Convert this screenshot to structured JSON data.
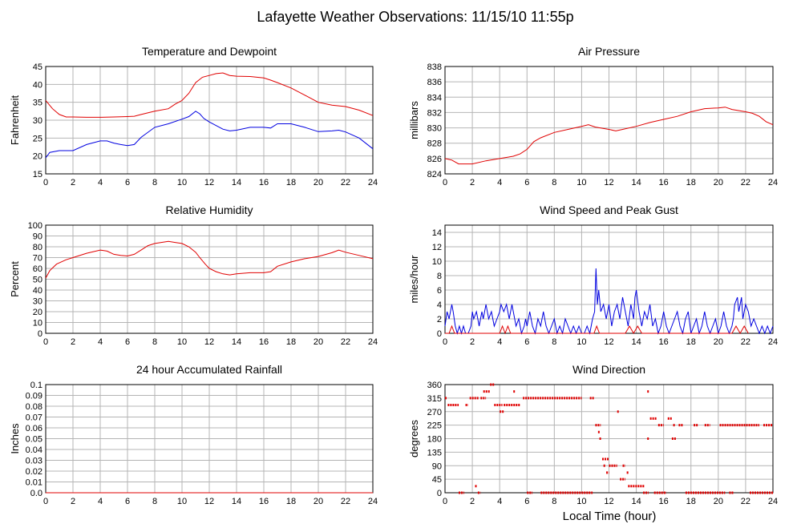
{
  "page": {
    "title": "Lafayette Weather Observations: 11/15/10 11:55p",
    "xlabel_global": "Local Time (hour)"
  },
  "colors": {
    "red": "#e00000",
    "blue": "#0000e0",
    "grid": "#b4b4b4",
    "frame": "#000000"
  },
  "chart_data": [
    {
      "id": "temp",
      "type": "line",
      "title": "Temperature and Dewpoint",
      "ylabel": "Fahrenheit",
      "xlim": [
        0,
        24
      ],
      "ylim": [
        15,
        45
      ],
      "xticks": [
        0,
        2,
        4,
        6,
        8,
        10,
        12,
        14,
        16,
        18,
        20,
        22,
        24
      ],
      "yticks": [
        15,
        20,
        25,
        30,
        35,
        40,
        45
      ],
      "ytick_labels": [
        "15",
        "20",
        "25",
        "30",
        "35",
        "40",
        "45"
      ],
      "grid": true,
      "series": [
        {
          "color": "red",
          "x": [
            0,
            0.5,
            1,
            1.5,
            2,
            3,
            4,
            5,
            6,
            6.5,
            7,
            8,
            9,
            9.5,
            10,
            10.5,
            11,
            11.5,
            12,
            12.5,
            13,
            13.5,
            14,
            15,
            16,
            16.5,
            17,
            18,
            19,
            20,
            21,
            22,
            23,
            24
          ],
          "y": [
            35.5,
            33.2,
            31.6,
            30.9,
            30.9,
            30.8,
            30.8,
            30.9,
            31,
            31.1,
            31.6,
            32.5,
            33.2,
            34.5,
            35.5,
            37.5,
            40.5,
            42,
            42.5,
            43,
            43.2,
            42.5,
            42.3,
            42.2,
            41.8,
            41.2,
            40.5,
            39,
            37,
            35,
            34.2,
            33.8,
            32.8,
            31.3
          ]
        },
        {
          "color": "blue",
          "x": [
            0,
            0.3,
            1,
            2,
            3,
            4,
            4.5,
            5,
            5.5,
            6,
            6.5,
            7,
            8,
            9,
            10,
            10.5,
            11,
            11.3,
            11.6,
            12,
            12.5,
            13,
            13.5,
            14,
            15,
            16,
            16.5,
            17,
            18,
            19,
            20,
            21,
            21.5,
            22,
            23,
            24
          ],
          "y": [
            19.5,
            21,
            21.5,
            21.5,
            23.2,
            24.2,
            24.2,
            23.6,
            23.2,
            22.9,
            23.2,
            25.2,
            28,
            29,
            30.3,
            31,
            32.5,
            31.8,
            30.5,
            29.5,
            28.5,
            27.5,
            27,
            27.2,
            28,
            28,
            27.8,
            29,
            29,
            28,
            26.8,
            27,
            27.2,
            26.7,
            25,
            22
          ]
        }
      ]
    },
    {
      "id": "pressure",
      "type": "line",
      "title": "Air Pressure",
      "ylabel": "millibars",
      "xlim": [
        0,
        24
      ],
      "ylim": [
        824,
        838
      ],
      "xticks": [
        0,
        2,
        4,
        6,
        8,
        10,
        12,
        14,
        16,
        18,
        20,
        22,
        24
      ],
      "yticks": [
        824,
        826,
        828,
        830,
        832,
        834,
        836,
        838
      ],
      "ytick_labels": [
        "824",
        "826",
        "828",
        "830",
        "832",
        "834",
        "836",
        "838"
      ],
      "grid": true,
      "series": [
        {
          "color": "red",
          "x": [
            0,
            0.5,
            1,
            2,
            3,
            4,
            5,
            5.5,
            6,
            6.5,
            7,
            8,
            9,
            10,
            10.5,
            11,
            12,
            12.5,
            13,
            14,
            15,
            16,
            17,
            18,
            19,
            20,
            20.5,
            21,
            22,
            22.5,
            23,
            23.5,
            24
          ],
          "y": [
            826,
            825.8,
            825.3,
            825.3,
            825.7,
            826,
            826.3,
            826.6,
            827.2,
            828.2,
            828.7,
            829.4,
            829.8,
            830.2,
            830.4,
            830.1,
            829.8,
            829.6,
            829.8,
            830.2,
            830.7,
            831.1,
            831.5,
            832.1,
            832.5,
            832.6,
            832.7,
            832.4,
            832.1,
            831.9,
            831.5,
            830.8,
            830.4
          ]
        }
      ]
    },
    {
      "id": "humidity",
      "type": "line",
      "title": "Relative Humidity",
      "ylabel": "Percent",
      "xlim": [
        0,
        24
      ],
      "ylim": [
        0,
        100
      ],
      "xticks": [
        0,
        2,
        4,
        6,
        8,
        10,
        12,
        14,
        16,
        18,
        20,
        22,
        24
      ],
      "yticks": [
        0,
        10,
        20,
        30,
        40,
        50,
        60,
        70,
        80,
        90,
        100
      ],
      "ytick_labels": [
        "0",
        "10",
        "20",
        "30",
        "40",
        "50",
        "60",
        "70",
        "80",
        "90",
        "100"
      ],
      "grid": true,
      "series": [
        {
          "color": "red",
          "x": [
            0,
            0.3,
            0.8,
            1.5,
            2,
            3,
            4,
            4.5,
            5,
            5.5,
            6,
            6.5,
            7,
            7.5,
            8,
            9,
            9.5,
            10,
            10.5,
            11,
            11.3,
            11.7,
            12,
            12.5,
            13,
            13.5,
            14,
            15,
            16,
            16.5,
            17,
            18,
            19,
            20,
            21,
            21.5,
            22,
            23,
            24
          ],
          "y": [
            51,
            58,
            64,
            68,
            70,
            74,
            77,
            76,
            73,
            72,
            71.5,
            73,
            77,
            81,
            83,
            85,
            84,
            83,
            80,
            75,
            70,
            64,
            60,
            57,
            55,
            54,
            55,
            56,
            56,
            57,
            62,
            66,
            69,
            71,
            74.5,
            77,
            75,
            72,
            69
          ]
        }
      ]
    },
    {
      "id": "wind",
      "type": "line",
      "title": "Wind Speed and Peak Gust",
      "ylabel": "miles/hour",
      "xlim": [
        0,
        24
      ],
      "ylim": [
        0,
        15
      ],
      "xticks": [
        0,
        2,
        4,
        6,
        8,
        10,
        12,
        14,
        16,
        18,
        20,
        22,
        24
      ],
      "yticks": [
        0,
        2,
        4,
        6,
        8,
        10,
        12,
        14
      ],
      "ytick_labels": [
        "0",
        "2",
        "4",
        "6",
        "8",
        "10",
        "12",
        "14"
      ],
      "grid": true,
      "series": [
        {
          "color": "blue",
          "x": [
            0,
            0.15,
            0.3,
            0.5,
            0.6,
            0.75,
            0.9,
            1.05,
            1.2,
            1.35,
            1.5,
            1.7,
            1.9,
            2.0,
            2.1,
            2.3,
            2.5,
            2.7,
            2.8,
            3.0,
            3.2,
            3.4,
            3.6,
            3.8,
            4.0,
            4.1,
            4.3,
            4.5,
            4.7,
            4.9,
            5.0,
            5.2,
            5.4,
            5.6,
            5.8,
            5.9,
            6.0,
            6.2,
            6.4,
            6.6,
            6.8,
            7.0,
            7.2,
            7.4,
            7.6,
            7.8,
            8.0,
            8.2,
            8.4,
            8.6,
            8.8,
            9.0,
            9.2,
            9.4,
            9.6,
            9.8,
            10.0,
            10.2,
            10.4,
            10.6,
            10.8,
            10.95,
            11.05,
            11.15,
            11.25,
            11.4,
            11.6,
            11.8,
            12.0,
            12.2,
            12.4,
            12.6,
            12.8,
            13.0,
            13.2,
            13.4,
            13.6,
            13.8,
            13.9,
            14.0,
            14.2,
            14.4,
            14.6,
            14.8,
            15.0,
            15.2,
            15.4,
            15.6,
            15.8,
            16.0,
            16.2,
            16.4,
            16.6,
            16.8,
            17.0,
            17.2,
            17.4,
            17.6,
            17.8,
            18.0,
            18.2,
            18.4,
            18.6,
            18.8,
            19.0,
            19.2,
            19.4,
            19.6,
            19.8,
            20.0,
            20.2,
            20.4,
            20.6,
            20.8,
            21.0,
            21.1,
            21.2,
            21.4,
            21.5,
            21.7,
            21.8,
            22.0,
            22.2,
            22.4,
            22.6,
            22.8,
            23.0,
            23.2,
            23.4,
            23.6,
            23.8,
            24.0
          ],
          "y": [
            1,
            3,
            2,
            4,
            3,
            1,
            0,
            1,
            0,
            1,
            0,
            0,
            1,
            3,
            2,
            3,
            1,
            3,
            2,
            4,
            2,
            3,
            1,
            2,
            3,
            4,
            3,
            4,
            2,
            4,
            3,
            1,
            2,
            0,
            1,
            2,
            1,
            3,
            1,
            0,
            2,
            1,
            3,
            1,
            0,
            1,
            2,
            0,
            1,
            0,
            2,
            1,
            0,
            1,
            0,
            1,
            0,
            0,
            1,
            0,
            2,
            3,
            9,
            4,
            6,
            3,
            4,
            2,
            4,
            1,
            3,
            4,
            2,
            5,
            3,
            1,
            4,
            2,
            5,
            6,
            3,
            1,
            3,
            2,
            4,
            1,
            2,
            0,
            1,
            3,
            1,
            0,
            1,
            2,
            3,
            1,
            0,
            2,
            3,
            0,
            1,
            2,
            0,
            1,
            3,
            1,
            0,
            1,
            2,
            0,
            1,
            3,
            1,
            0,
            1,
            2,
            4,
            5,
            3,
            5,
            2,
            4,
            3,
            1,
            2,
            1,
            0,
            1,
            0,
            1,
            0,
            1
          ],
          "note_skip": false
        },
        {
          "color": "red",
          "x": [
            0,
            0.3,
            0.5,
            0.7,
            0.9,
            4.0,
            4.2,
            4.4,
            4.6,
            4.8,
            5.0,
            10.9,
            11.1,
            11.3,
            13.2,
            13.5,
            13.8,
            14.1,
            14.4,
            21.0,
            21.3,
            21.6,
            21.9,
            22.2
          ],
          "y": [
            0,
            0,
            1,
            0,
            0,
            0,
            1,
            0,
            1,
            0,
            0,
            0,
            1,
            0,
            0,
            1,
            0,
            1,
            0,
            0,
            1,
            0,
            1,
            0
          ]
        }
      ]
    },
    {
      "id": "rain",
      "type": "line",
      "title": "24 hour Accumulated Rainfall",
      "ylabel": "Inches",
      "xlim": [
        0,
        24
      ],
      "ylim": [
        0,
        0.1
      ],
      "xticks": [
        0,
        2,
        4,
        6,
        8,
        10,
        12,
        14,
        16,
        18,
        20,
        22,
        24
      ],
      "yticks": [
        0,
        0.01,
        0.02,
        0.03,
        0.04,
        0.05,
        0.06,
        0.07,
        0.08,
        0.09,
        0.1
      ],
      "ytick_labels": [
        "0.0",
        "0.01",
        "0.02",
        "0.03",
        "0.04",
        "0.05",
        "0.06",
        "0.07",
        "0.08",
        "0.09",
        "0.1"
      ],
      "grid": true,
      "series": [
        {
          "color": "red",
          "x": [
            0,
            24
          ],
          "y": [
            0,
            0
          ]
        }
      ]
    },
    {
      "id": "direction",
      "type": "scatter",
      "title": "Wind Direction",
      "ylabel": "degrees",
      "xlabel": "Local Time (hour)",
      "xlim": [
        0,
        24
      ],
      "ylim": [
        0,
        360
      ],
      "xticks": [
        0,
        2,
        4,
        6,
        8,
        10,
        12,
        14,
        16,
        18,
        20,
        22,
        24
      ],
      "yticks": [
        0,
        45,
        90,
        135,
        180,
        225,
        270,
        315,
        360
      ],
      "ytick_labels": [
        "0",
        "45",
        "90",
        "135",
        "180",
        "225",
        "270",
        "315",
        "360"
      ],
      "grid": true,
      "segments": [
        {
          "x0": 0.0,
          "x1": 0.1,
          "y": 315
        },
        {
          "x0": 0.2,
          "x1": 1.0,
          "y": 292
        },
        {
          "x0": 1.0,
          "x1": 1.4,
          "y": 0
        },
        {
          "x0": 1.5,
          "x1": 1.7,
          "y": 292
        },
        {
          "x0": 1.8,
          "x1": 2.5,
          "y": 315
        },
        {
          "x0": 2.2,
          "x1": 2.3,
          "y": 22
        },
        {
          "x0": 2.4,
          "x1": 2.6,
          "y": 0
        },
        {
          "x0": 2.6,
          "x1": 3.0,
          "y": 315
        },
        {
          "x0": 2.8,
          "x1": 3.3,
          "y": 337
        },
        {
          "x0": 3.3,
          "x1": 3.6,
          "y": 360
        },
        {
          "x0": 3.6,
          "x1": 4.2,
          "y": 292
        },
        {
          "x0": 4.0,
          "x1": 4.3,
          "y": 270
        },
        {
          "x0": 4.3,
          "x1": 5.5,
          "y": 292
        },
        {
          "x0": 5.0,
          "x1": 5.1,
          "y": 337
        },
        {
          "x0": 5.7,
          "x1": 10.0,
          "y": 315
        },
        {
          "x0": 6.0,
          "x1": 6.4,
          "y": 0
        },
        {
          "x0": 7.0,
          "x1": 10.8,
          "y": 0
        },
        {
          "x0": 10.6,
          "x1": 10.9,
          "y": 315
        },
        {
          "x0": 11.0,
          "x1": 11.4,
          "y": 225
        },
        {
          "x0": 11.2,
          "x1": 11.3,
          "y": 202
        },
        {
          "x0": 11.3,
          "x1": 11.4,
          "y": 180
        },
        {
          "x0": 11.5,
          "x1": 12.0,
          "y": 112
        },
        {
          "x0": 11.6,
          "x1": 11.7,
          "y": 90
        },
        {
          "x0": 11.8,
          "x1": 12.0,
          "y": 67
        },
        {
          "x0": 12.0,
          "x1": 12.6,
          "y": 90
        },
        {
          "x0": 12.6,
          "x1": 12.7,
          "y": 270
        },
        {
          "x0": 12.8,
          "x1": 13.2,
          "y": 45
        },
        {
          "x0": 13.0,
          "x1": 13.2,
          "y": 90
        },
        {
          "x0": 13.3,
          "x1": 13.4,
          "y": 67
        },
        {
          "x0": 13.4,
          "x1": 14.6,
          "y": 22
        },
        {
          "x0": 14.5,
          "x1": 14.9,
          "y": 0
        },
        {
          "x0": 14.8,
          "x1": 14.9,
          "y": 337
        },
        {
          "x0": 14.8,
          "x1": 14.9,
          "y": 180
        },
        {
          "x0": 15.0,
          "x1": 15.5,
          "y": 247
        },
        {
          "x0": 15.3,
          "x1": 16.2,
          "y": 0
        },
        {
          "x0": 15.6,
          "x1": 16.0,
          "y": 225
        },
        {
          "x0": 16.3,
          "x1": 16.6,
          "y": 247
        },
        {
          "x0": 16.6,
          "x1": 16.9,
          "y": 180
        },
        {
          "x0": 16.7,
          "x1": 16.8,
          "y": 225
        },
        {
          "x0": 17.1,
          "x1": 17.4,
          "y": 225
        },
        {
          "x0": 17.6,
          "x1": 20.5,
          "y": 0
        },
        {
          "x0": 18.2,
          "x1": 18.5,
          "y": 225
        },
        {
          "x0": 19.0,
          "x1": 19.4,
          "y": 225
        },
        {
          "x0": 20.1,
          "x1": 23.0,
          "y": 225
        },
        {
          "x0": 20.8,
          "x1": 21.1,
          "y": 0
        },
        {
          "x0": 22.3,
          "x1": 24.0,
          "y": 0
        },
        {
          "x0": 23.3,
          "x1": 24.0,
          "y": 225
        }
      ]
    }
  ]
}
